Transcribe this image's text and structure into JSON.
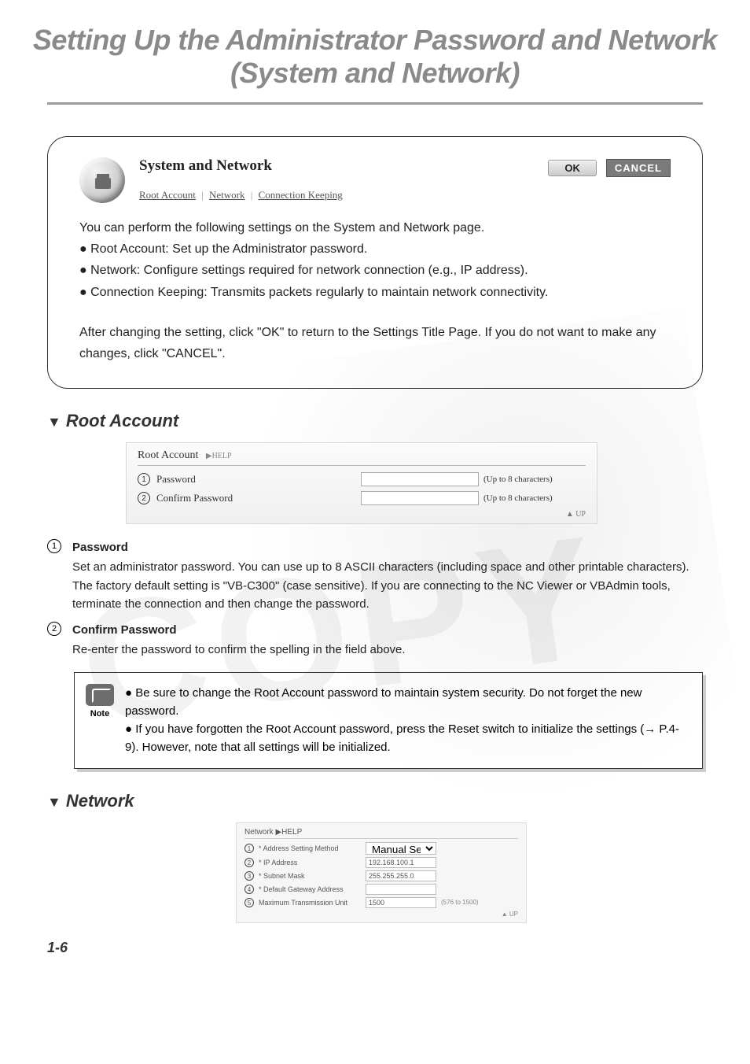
{
  "page": {
    "title": "Setting Up the Administrator Password and Network (System and Network)",
    "number": "1-6"
  },
  "info": {
    "title": "System and Network",
    "buttons": {
      "ok": "OK",
      "cancel": "CANCEL"
    },
    "breadcrumb": {
      "a": "Root Account",
      "b": "Network",
      "c": "Connection Keeping"
    },
    "intro_lead": "You can perform the following settings on the System and Network page.",
    "bullets": [
      "Root Account: Set up the Administrator password.",
      "Network: Configure settings required for network connection (e.g., IP address).",
      "Connection Keeping: Transmits packets regularly to maintain network connectivity."
    ],
    "after": "After changing the setting, click \"OK\" to return to the Settings Title Page. If you do not want to make any changes, click \"CANCEL\"."
  },
  "root_section": {
    "heading": "Root Account",
    "shot": {
      "title": "Root Account",
      "help": "▶HELP",
      "row1_label": "Password",
      "row2_label": "Confirm Password",
      "hint": "(Up to 8 characters)",
      "up": "▲ UP"
    },
    "items": [
      {
        "n": "1",
        "title": "Password",
        "text": "Set an administrator password. You can use up to 8 ASCII characters (including space and other printable characters). The factory default setting is \"VB-C300\" (case sensitive). If you are connecting to the NC Viewer or VBAdmin tools, terminate the connection and then change the password."
      },
      {
        "n": "2",
        "title": "Confirm Password",
        "text": "Re-enter the password to confirm the spelling in the field above."
      }
    ]
  },
  "note": {
    "label": "Note",
    "lines": [
      "Be sure to change the Root Account password to maintain system security. Do not forget the new password.",
      "If you have forgotten the Root Account password, press the Reset switch to initialize the settings (→ P.4-9). However, note that all settings will be initialized."
    ]
  },
  "network_section": {
    "heading": "Network",
    "shot": {
      "title": "Network  ▶HELP",
      "rows": [
        {
          "n": "1",
          "label": "* Address Setting Method",
          "value": "Manual Setting",
          "type": "select"
        },
        {
          "n": "2",
          "label": "* IP Address",
          "value": "192.168.100.1",
          "type": "text"
        },
        {
          "n": "3",
          "label": "* Subnet Mask",
          "value": "255.255.255.0",
          "type": "text"
        },
        {
          "n": "4",
          "label": "* Default Gateway Address",
          "value": "",
          "type": "text"
        },
        {
          "n": "5",
          "label": "Maximum Transmission Unit",
          "value": "1500",
          "type": "text",
          "hint": "(576 to 1500)"
        }
      ],
      "up": "▲ UP"
    }
  },
  "colors": {
    "title_gray": "#8a8a8a",
    "rule_gray": "#9b9b9b",
    "text": "#222222",
    "btn_cancel_bg": "#7a7a7a"
  }
}
